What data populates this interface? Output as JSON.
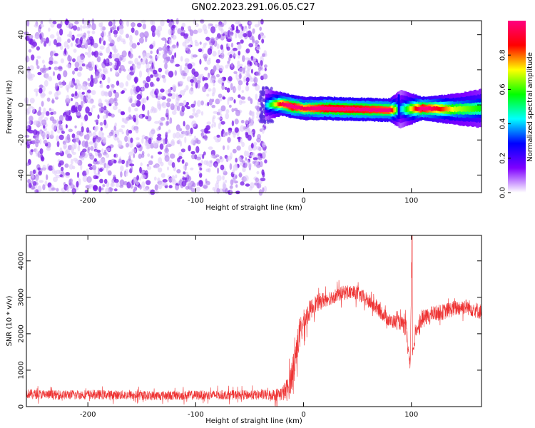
{
  "title": "GN02.2023.291.06.05.C27",
  "chart_data": [
    {
      "type": "heatmap",
      "title": "GN02.2023.291.06.05.C27",
      "xlabel": "Height of straight line (km)",
      "ylabel": "Frequency (Hz)",
      "xlim": [
        -257,
        165
      ],
      "ylim": [
        -50,
        48
      ],
      "x_ticks": [
        -200,
        -100,
        0,
        100
      ],
      "y_ticks": [
        -40,
        -20,
        0,
        20,
        40
      ],
      "colorbar": {
        "label": "Normalized spectral amplitude",
        "range": [
          0.0,
          1.0
        ],
        "ticks": [
          0.0,
          0.2,
          0.4,
          0.6,
          0.8
        ],
        "colormap": [
          "#ffffff",
          "#7f00ff",
          "#0000ff",
          "#00ffff",
          "#00ff00",
          "#ffff00",
          "#ff0000",
          "#ff0080"
        ]
      },
      "noise_region": {
        "x": [
          -257,
          -35
        ],
        "freq": [
          -50,
          48
        ],
        "amplitude": [
          0.02,
          0.18
        ]
      },
      "signal_band": [
        {
          "x": -35,
          "freq": 0.0,
          "width": 4,
          "amplitude": 0.3
        },
        {
          "x": -20,
          "freq": 0.5,
          "width": 3,
          "amplitude": 0.75
        },
        {
          "x": -10,
          "freq": -1.0,
          "width": 3,
          "amplitude": 0.85
        },
        {
          "x": 0,
          "freq": -2.0,
          "width": 3,
          "amplitude": 0.75
        },
        {
          "x": 20,
          "freq": -2.0,
          "width": 3,
          "amplitude": 0.85
        },
        {
          "x": 50,
          "freq": -2.5,
          "width": 3,
          "amplitude": 0.85
        },
        {
          "x": 80,
          "freq": -3.0,
          "width": 3,
          "amplitude": 0.8
        },
        {
          "x": 90,
          "freq": -2.5,
          "width": 5,
          "amplitude": 0.3
        },
        {
          "x": 110,
          "freq": -2.0,
          "width": 3,
          "amplitude": 0.85
        },
        {
          "x": 140,
          "freq": -2.5,
          "width": 4,
          "amplitude": 0.55
        },
        {
          "x": 165,
          "freq": -2.0,
          "width": 5,
          "amplitude": 0.45
        }
      ]
    },
    {
      "type": "line",
      "xlabel": "Height of straight line (km)",
      "ylabel": "SNR (10 * v/v)",
      "xlim": [
        -257,
        165
      ],
      "ylim": [
        0,
        4700
      ],
      "x_ticks": [
        -200,
        -100,
        0,
        100
      ],
      "y_ticks": [
        0,
        1000,
        2000,
        3000,
        4000
      ],
      "series": [
        {
          "color": "#ee3333",
          "x": [
            -257,
            -230,
            -200,
            -170,
            -140,
            -110,
            -80,
            -50,
            -30,
            -20,
            -14,
            -10,
            -5,
            0,
            5,
            10,
            20,
            30,
            40,
            50,
            60,
            70,
            80,
            90,
            95,
            99,
            100,
            101,
            105,
            110,
            120,
            130,
            140,
            150,
            160,
            165
          ],
          "y": [
            350,
            320,
            330,
            320,
            300,
            310,
            320,
            320,
            320,
            350,
            500,
            1000,
            1800,
            2300,
            2600,
            2800,
            2950,
            3050,
            3150,
            3100,
            2900,
            2650,
            2350,
            2300,
            2150,
            1000,
            3600,
            1500,
            2150,
            2400,
            2550,
            2600,
            2700,
            2750,
            2650,
            2600
          ],
          "noise": [
            130,
            130,
            130,
            130,
            130,
            130,
            130,
            130,
            150,
            200,
            350,
            450,
            450,
            350,
            300,
            250,
            220,
            200,
            200,
            200,
            200,
            200,
            200,
            200,
            250,
            200,
            300,
            200,
            220,
            220,
            220,
            220,
            220,
            220,
            220,
            220
          ]
        }
      ]
    }
  ]
}
